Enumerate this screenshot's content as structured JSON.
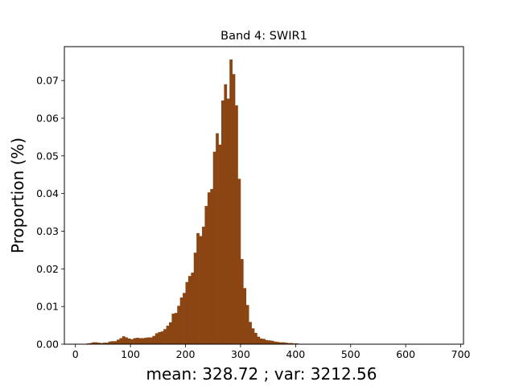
{
  "chart_data": {
    "type": "bar",
    "title": "Band 4: SWIR1",
    "xlabel": "mean: 328.72 ; var: 3212.56",
    "ylabel": "Proportion (%)",
    "xlim": [
      -20,
      705
    ],
    "ylim": [
      0,
      0.079
    ],
    "xticks": [
      0,
      100,
      200,
      300,
      400,
      500,
      600,
      700
    ],
    "yticks": [
      "0.00",
      "0.01",
      "0.02",
      "0.03",
      "0.04",
      "0.05",
      "0.06",
      "0.07"
    ],
    "bar_color": "#8b4513",
    "bin_width": 5,
    "bin_edges_start": 20,
    "values": [
      0.0002,
      0.0003,
      0.0005,
      0.0005,
      0.0004,
      0.0003,
      0.0004,
      0.0004,
      0.0007,
      0.0008,
      0.0008,
      0.0012,
      0.0016,
      0.0021,
      0.0018,
      0.0015,
      0.0013,
      0.0016,
      0.0017,
      0.0016,
      0.0016,
      0.0017,
      0.0018,
      0.0018,
      0.0022,
      0.0029,
      0.0032,
      0.0034,
      0.004,
      0.0049,
      0.0058,
      0.0081,
      0.0083,
      0.0102,
      0.0124,
      0.0136,
      0.0165,
      0.0181,
      0.019,
      0.0243,
      0.0295,
      0.0287,
      0.0312,
      0.0367,
      0.0403,
      0.0412,
      0.0511,
      0.056,
      0.053,
      0.0647,
      0.069,
      0.0652,
      0.0756,
      0.0717,
      0.0634,
      0.0439,
      0.0226,
      0.0149,
      0.0104,
      0.0059,
      0.0042,
      0.003,
      0.002,
      0.0015,
      0.0014,
      0.0011,
      0.001,
      0.0009,
      0.0007,
      0.0006,
      0.0005,
      0.0005,
      0.0004,
      0.0003,
      0.0003,
      0.0002,
      0.0002,
      0.0001,
      0.0001,
      0.0001,
      0.0001,
      0.0001,
      0.0001,
      0.0001,
      0.0001,
      0.0001,
      0.0001,
      0.0001,
      0.0001,
      0.0001,
      0.0001,
      0.0001
    ]
  }
}
